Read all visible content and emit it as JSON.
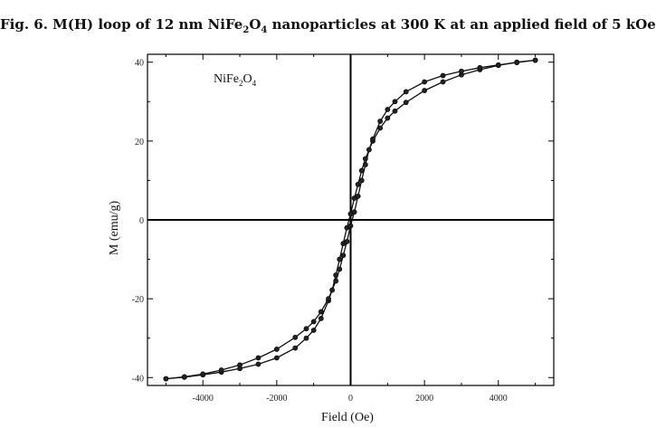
{
  "figure": {
    "title_prefix": "Fig. 6. M(H) loop of 12 nm NiFe",
    "title_sub1": "2",
    "title_mid": "O",
    "title_sub2": "4",
    "title_suffix": " nanoparticles at 300 K at an applied field of  5 kOe."
  },
  "chart_data": {
    "type": "line",
    "xlabel": "Field (Oe)",
    "ylabel": "M (emu/g)",
    "xlim": [
      -5500,
      5500
    ],
    "ylim": [
      -42,
      42
    ],
    "xticks": [
      -4000,
      -2000,
      0,
      2000,
      4000
    ],
    "yticks": [
      -40,
      -20,
      0,
      20,
      40
    ],
    "grid": false,
    "annotation": {
      "base": "NiFe",
      "sub1": "2",
      "mid": "O",
      "sub2": "4"
    },
    "series": [
      {
        "branch": "decreasing field",
        "x": [
          5000,
          4500,
          4000,
          3500,
          3000,
          2500,
          2000,
          1500,
          1200,
          1000,
          800,
          600,
          400,
          300,
          200,
          100,
          0,
          -100,
          -200,
          -300,
          -400,
          -500,
          -600,
          -800,
          -1000,
          -1200,
          -1500,
          -2000,
          -2500,
          -3000,
          -3500,
          -4000,
          -4500,
          -5000
        ],
        "y": [
          40.5,
          40.0,
          39.2,
          38.1,
          36.8,
          35.0,
          32.8,
          29.8,
          27.6,
          25.8,
          23.3,
          20.0,
          15.5,
          12.5,
          9.0,
          5.5,
          1.5,
          -2.0,
          -6.0,
          -10.0,
          -14.0,
          -17.8,
          -20.5,
          -25.0,
          -28.0,
          -30.0,
          -32.5,
          -35.0,
          -36.6,
          -37.7,
          -38.6,
          -39.3,
          -39.9,
          -40.3
        ]
      },
      {
        "branch": "increasing field",
        "x": [
          -5000,
          -4500,
          -4000,
          -3500,
          -3000,
          -2500,
          -2000,
          -1500,
          -1200,
          -1000,
          -800,
          -600,
          -400,
          -300,
          -200,
          -100,
          0,
          100,
          200,
          300,
          400,
          500,
          600,
          800,
          1000,
          1200,
          1500,
          2000,
          2500,
          3000,
          3500,
          4000,
          4500,
          5000
        ],
        "y": [
          -40.3,
          -39.8,
          -39.1,
          -38.1,
          -36.8,
          -35.0,
          -32.8,
          -29.8,
          -27.6,
          -25.8,
          -23.3,
          -20.0,
          -15.5,
          -12.5,
          -9.0,
          -5.5,
          -1.5,
          2.0,
          6.0,
          10.0,
          14.0,
          17.8,
          20.5,
          25.0,
          28.0,
          30.0,
          32.5,
          35.0,
          36.6,
          37.7,
          38.6,
          39.3,
          39.9,
          40.5
        ]
      }
    ]
  }
}
